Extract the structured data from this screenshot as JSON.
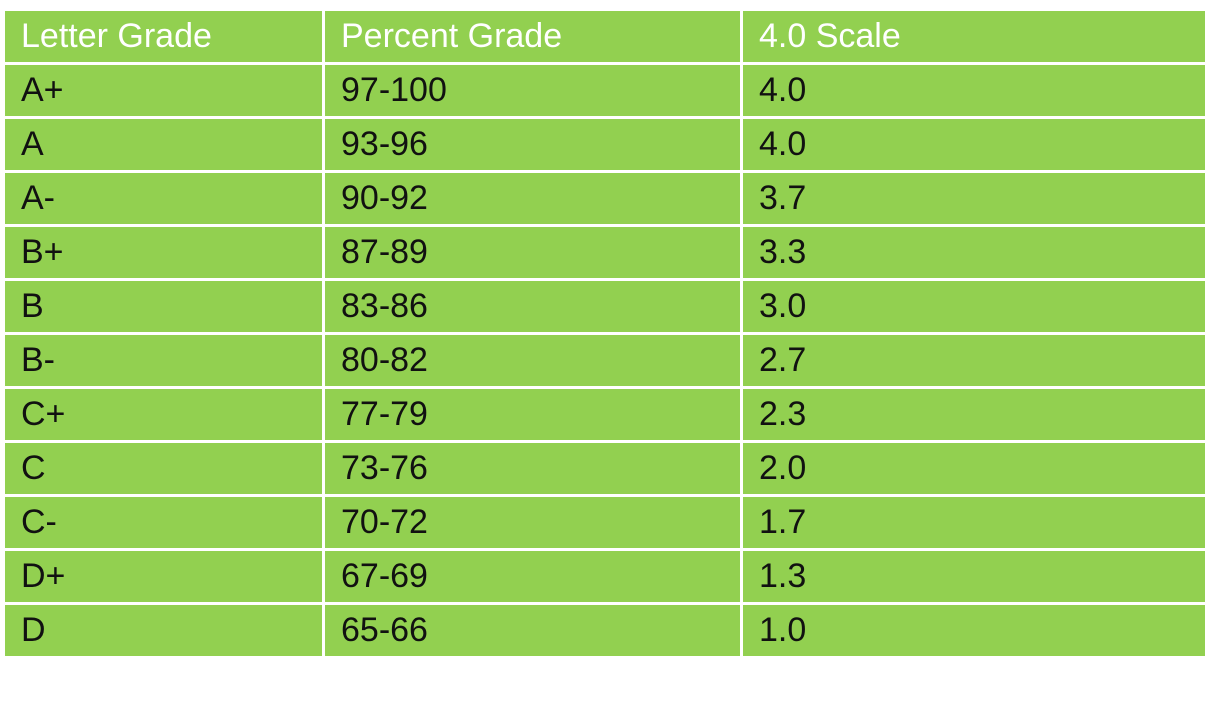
{
  "table": {
    "header": [
      "Letter Grade",
      "Percent Grade",
      "4.0 Scale"
    ],
    "rows": [
      [
        "A+",
        "97-100",
        "4.0"
      ],
      [
        "A",
        "93-96",
        "4.0"
      ],
      [
        "A-",
        "90-92",
        "3.7"
      ],
      [
        "B+",
        "87-89",
        "3.3"
      ],
      [
        "B",
        "83-86",
        "3.0"
      ],
      [
        "B-",
        "80-82",
        "2.7"
      ],
      [
        "C+",
        "77-79",
        "2.3"
      ],
      [
        "C",
        "73-76",
        "2.0"
      ],
      [
        "C-",
        "70-72",
        "1.7"
      ],
      [
        "D+",
        "67-69",
        "1.3"
      ],
      [
        "D",
        "65-66",
        "1.0"
      ]
    ]
  }
}
